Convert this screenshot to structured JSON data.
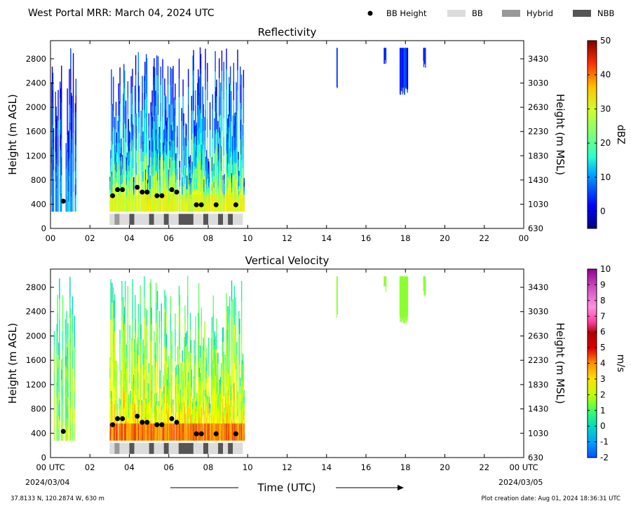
{
  "header": {
    "title": "West Portal MRR:  March 04, 2024 UTC",
    "legend": [
      {
        "label": "BB Height",
        "kind": "dot",
        "color": "#000000"
      },
      {
        "label": "BB",
        "kind": "swatch",
        "color": "#dcdcdc"
      },
      {
        "label": "Hybrid",
        "kind": "swatch",
        "color": "#999999"
      },
      {
        "label": "NBB",
        "kind": "swatch",
        "color": "#555555"
      }
    ]
  },
  "footer": {
    "location": "37.8133 N, 120.2874 W, 630 m",
    "creation": "Plot creation date: Aug 01, 2024 18:36:31 UTC",
    "date_start": "2024/03/04",
    "date_end": "2024/03/05",
    "xlabel": "Time (UTC)"
  },
  "chart_data": [
    {
      "type": "heatmap",
      "title": "Reflectivity",
      "ylabel": "Height (m AGL)",
      "y2label": "Height (m MSL)",
      "xticks": [
        "00",
        "02",
        "04",
        "06",
        "08",
        "10",
        "12",
        "14",
        "16",
        "18",
        "20",
        "22",
        "00"
      ],
      "xlim": [
        0,
        24
      ],
      "yticks": [
        0,
        400,
        800,
        1200,
        1600,
        2000,
        2400,
        2800
      ],
      "y2ticks": [
        630,
        1030,
        1430,
        1830,
        2230,
        2630,
        3030,
        3430
      ],
      "ylim": [
        0,
        3100
      ],
      "colorbar": {
        "label": "dBZ",
        "ticks": [
          0,
          10,
          20,
          30,
          40,
          50
        ],
        "range": [
          -5,
          50
        ]
      },
      "bb_height": [
        {
          "x": 0.65,
          "y": 450
        },
        {
          "x": 3.15,
          "y": 540
        },
        {
          "x": 3.4,
          "y": 640
        },
        {
          "x": 3.65,
          "y": 640
        },
        {
          "x": 4.4,
          "y": 680
        },
        {
          "x": 4.65,
          "y": 600
        },
        {
          "x": 4.9,
          "y": 600
        },
        {
          "x": 5.4,
          "y": 540
        },
        {
          "x": 5.65,
          "y": 540
        },
        {
          "x": 6.15,
          "y": 640
        },
        {
          "x": 6.4,
          "y": 600
        },
        {
          "x": 7.4,
          "y": 390
        },
        {
          "x": 7.65,
          "y": 390
        },
        {
          "x": 8.4,
          "y": 390
        },
        {
          "x": 9.4,
          "y": 390
        }
      ],
      "bb_type_strip": [
        {
          "start": 3.0,
          "end": 3.25,
          "type": "BB"
        },
        {
          "start": 3.25,
          "end": 3.5,
          "type": "Hybrid"
        },
        {
          "start": 3.5,
          "end": 3.8,
          "type": "BB"
        },
        {
          "start": 4.0,
          "end": 4.25,
          "type": "NBB"
        },
        {
          "start": 4.25,
          "end": 5.0,
          "type": "BB"
        },
        {
          "start": 5.0,
          "end": 5.25,
          "type": "NBB"
        },
        {
          "start": 5.25,
          "end": 5.75,
          "type": "BB"
        },
        {
          "start": 5.75,
          "end": 6.0,
          "type": "NBB"
        },
        {
          "start": 6.0,
          "end": 6.5,
          "type": "BB"
        },
        {
          "start": 6.5,
          "end": 7.25,
          "type": "NBB"
        },
        {
          "start": 7.25,
          "end": 7.75,
          "type": "BB"
        },
        {
          "start": 7.75,
          "end": 8.0,
          "type": "NBB"
        },
        {
          "start": 8.0,
          "end": 8.5,
          "type": "BB"
        },
        {
          "start": 8.5,
          "end": 8.75,
          "type": "NBB"
        },
        {
          "start": 8.75,
          "end": 9.0,
          "type": "BB"
        },
        {
          "start": 9.0,
          "end": 9.25,
          "type": "NBB"
        },
        {
          "start": 9.25,
          "end": 9.75,
          "type": "BB"
        }
      ]
    },
    {
      "type": "heatmap",
      "title": "Vertical Velocity",
      "ylabel": "Height (m AGL)",
      "y2label": "Height (m MSL)",
      "xticks": [
        "00 UTC",
        "02",
        "04",
        "06",
        "08",
        "10",
        "12",
        "14",
        "16",
        "18",
        "20",
        "22",
        "00 UTC"
      ],
      "xlim": [
        0,
        24
      ],
      "yticks": [
        0,
        400,
        800,
        1200,
        1600,
        2000,
        2400,
        2800
      ],
      "y2ticks": [
        630,
        1030,
        1430,
        1830,
        2230,
        2630,
        3030,
        3430
      ],
      "ylim": [
        0,
        3100
      ],
      "colorbar": {
        "label": "m/s",
        "ticks": [
          -2,
          -1,
          0,
          1,
          2,
          3,
          4,
          5,
          6,
          7,
          8,
          9,
          10
        ],
        "range": [
          -2,
          10
        ]
      },
      "bb_height": [
        {
          "x": 0.65,
          "y": 430
        },
        {
          "x": 3.15,
          "y": 540
        },
        {
          "x": 3.4,
          "y": 640
        },
        {
          "x": 3.65,
          "y": 640
        },
        {
          "x": 4.4,
          "y": 680
        },
        {
          "x": 4.65,
          "y": 580
        },
        {
          "x": 4.9,
          "y": 580
        },
        {
          "x": 5.4,
          "y": 540
        },
        {
          "x": 5.65,
          "y": 540
        },
        {
          "x": 6.15,
          "y": 640
        },
        {
          "x": 6.4,
          "y": 580
        },
        {
          "x": 7.4,
          "y": 390
        },
        {
          "x": 7.65,
          "y": 390
        },
        {
          "x": 8.4,
          "y": 390
        },
        {
          "x": 9.4,
          "y": 390
        }
      ],
      "bb_type_strip": [
        {
          "start": 3.0,
          "end": 3.25,
          "type": "BB"
        },
        {
          "start": 3.25,
          "end": 3.5,
          "type": "Hybrid"
        },
        {
          "start": 3.5,
          "end": 3.8,
          "type": "BB"
        },
        {
          "start": 4.0,
          "end": 4.25,
          "type": "NBB"
        },
        {
          "start": 4.25,
          "end": 5.0,
          "type": "BB"
        },
        {
          "start": 5.0,
          "end": 5.25,
          "type": "NBB"
        },
        {
          "start": 5.25,
          "end": 5.75,
          "type": "BB"
        },
        {
          "start": 5.75,
          "end": 6.0,
          "type": "NBB"
        },
        {
          "start": 6.0,
          "end": 6.5,
          "type": "BB"
        },
        {
          "start": 6.5,
          "end": 7.25,
          "type": "NBB"
        },
        {
          "start": 7.25,
          "end": 7.75,
          "type": "BB"
        },
        {
          "start": 7.75,
          "end": 8.0,
          "type": "NBB"
        },
        {
          "start": 8.0,
          "end": 8.5,
          "type": "BB"
        },
        {
          "start": 8.5,
          "end": 8.75,
          "type": "NBB"
        },
        {
          "start": 8.75,
          "end": 9.0,
          "type": "BB"
        },
        {
          "start": 9.0,
          "end": 9.25,
          "type": "NBB"
        },
        {
          "start": 9.25,
          "end": 9.75,
          "type": "BB"
        }
      ]
    }
  ]
}
